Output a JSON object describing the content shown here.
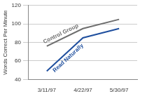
{
  "chart_data": {
    "type": "line",
    "y_label": "Words Correct Per Minute",
    "categories": [
      "3/11/97",
      "4/22/97",
      "5/30/97"
    ],
    "series": [
      {
        "name": "Control Group",
        "color": "#6e6e6e",
        "values": [
          76,
          95,
          105
        ]
      },
      {
        "name": "Read Naturally",
        "color": "#1f4f9e",
        "values": [
          49,
          85,
          95
        ]
      }
    ],
    "ylim": [
      40,
      120
    ],
    "yticks": [
      40,
      60,
      80,
      100,
      120
    ],
    "grid": true
  }
}
